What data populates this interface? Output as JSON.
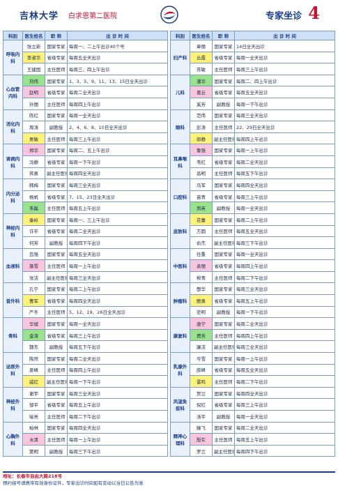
{
  "header": {
    "brand": "吉林大学",
    "hospital": "白求恩第二医院",
    "section": "专家坐诊",
    "page": "4"
  },
  "table_headers": [
    "科别",
    "医生姓名",
    "职 称",
    "出 诊 时 间"
  ],
  "left": {
    "groups": [
      {
        "dept": "呼吸内科",
        "rows": [
          [
            "张立新",
            "国家专家",
            "每周一、二上午出诊40个号"
          ],
          [
            "李淑华",
            "省级专家",
            "每周五全天出诊"
          ],
          [
            "王建国",
            "主任医师",
            "每周三、四上午出诊"
          ]
        ]
      },
      {
        "dept": "心血管内科",
        "rows": [
          [
            "刘伟",
            "国家专家",
            "1、3、5、9、11、13、15日全天出诊"
          ],
          [
            "赵明",
            "省级专家",
            "每周二全天出诊"
          ],
          [
            "孙丽",
            "主任医师",
            "每周四上午出诊"
          ]
        ]
      },
      {
        "dept": "消化内科",
        "rows": [
          [
            "陈红",
            "国家专家",
            "每周一全天出诊"
          ],
          [
            "周涛",
            "副教授",
            "2、4、6、8、10日全天出诊"
          ],
          [
            "吴敏",
            "主任医师",
            "每周三上午出诊"
          ]
        ]
      },
      {
        "dept": "肾病内科",
        "rows": [
          [
            "郑华",
            "国家专家",
            "每周二、五上午出诊"
          ],
          [
            "冯静",
            "省级专家",
            "每周一下午出诊"
          ],
          [
            "蒋勇",
            "副主任医师",
            "每周四全天出诊"
          ]
        ]
      },
      {
        "dept": "内分泌科",
        "rows": [
          [
            "韩梅",
            "国家专家",
            "每周三全天出诊"
          ],
          [
            "杨帆",
            "省级专家",
            "7、15、23日全天出诊"
          ],
          [
            "朱磊",
            "主任医师",
            "每周五上午出诊"
          ]
        ]
      },
      {
        "dept": "神经内科",
        "rows": [
          [
            "秦岭",
            "国家专家",
            "每周一、三上午出诊"
          ],
          [
            "许平",
            "省级专家",
            "每周二全天出诊"
          ],
          [
            "何芳",
            "副教授",
            "每周四下午出诊"
          ]
        ]
      },
      {
        "dept": "血液科",
        "rows": [
          [
            "吕强",
            "国家专家",
            "每周五全天出诊"
          ],
          [
            "施雪",
            "主任医师",
            "每周一上午出诊"
          ],
          [
            "张洁",
            "副主任医师",
            "每周三全天出诊"
          ]
        ]
      },
      {
        "dept": "普外科",
        "rows": [
          [
            "孔宁",
            "国家专家",
            "每周二上午出诊"
          ],
          [
            "曹军",
            "省级专家",
            "每周四全天出诊"
          ],
          [
            "严冬",
            "主任医师",
            "5、12、19、26日全天出诊"
          ]
        ]
      },
      {
        "dept": "骨科",
        "rows": [
          [
            "华斌",
            "国家专家",
            "每周一全天出诊"
          ],
          [
            "金涛",
            "省级专家",
            "每周三上午出诊"
          ],
          [
            "魏东",
            "副教授",
            "每周五下午出诊"
          ]
        ]
      },
      {
        "dept": "泌尿外科",
        "rows": [
          [
            "陶然",
            "国家专家",
            "每周二全天出诊"
          ],
          [
            "姜峰",
            "主任医师",
            "每周四上午出诊"
          ],
          [
            "戚红",
            "副主任医师",
            "每周一下午出诊"
          ]
        ]
      },
      {
        "dept": "神经外科",
        "rows": [
          [
            "谢宇",
            "国家专家",
            "每周三全天出诊"
          ],
          [
            "邹平",
            "省级专家",
            "每周五上午出诊"
          ],
          [
            "喻亮",
            "主任医师",
            "每周二下午出诊"
          ]
        ]
      },
      {
        "dept": "心胸外科",
        "rows": [
          [
            "柏林",
            "国家专家",
            "每周四全天出诊"
          ],
          [
            "水清",
            "主任医师",
            "每周一上午出诊"
          ],
          [
            "窦明",
            "副教授",
            "每周三下午出诊"
          ]
        ]
      }
    ]
  },
  "right": {
    "groups": [
      {
        "dept": "妇产科",
        "rows": [
          [
            "章丽",
            "国家专家",
            "14日全天出诊"
          ],
          [
            "云霞",
            "省级专家",
            "每周一全天出诊"
          ],
          [
            "苏敏",
            "主任医师",
            "每周三上午出诊"
          ]
        ]
      },
      {
        "dept": "儿科",
        "rows": [
          [
            "潘华",
            "国家专家",
            "每周二、四上午出诊"
          ],
          [
            "葛云",
            "省级专家",
            "每周五全天出诊"
          ],
          [
            "奚芳",
            "副教授",
            "每周一下午出诊"
          ]
        ]
      },
      {
        "dept": "眼科",
        "rows": [
          [
            "范伟",
            "国家专家",
            "每周三全天出诊"
          ],
          [
            "彭涛",
            "主任医师",
            "22、29日全天出诊"
          ],
          [
            "郎静",
            "副主任医师",
            "每周四上午出诊"
          ]
        ]
      },
      {
        "dept": "耳鼻喉科",
        "rows": [
          [
            "鲁强",
            "国家专家",
            "每周一上午出诊"
          ],
          [
            "韦红",
            "省级专家",
            "每周二全天出诊"
          ],
          [
            "昌明",
            "主任医师",
            "每周五下午出诊"
          ]
        ]
      },
      {
        "dept": "口腔科",
        "rows": [
          [
            "马军",
            "国家专家",
            "每周四全天出诊"
          ],
          [
            "苗青",
            "省级专家",
            "每周三上午出诊"
          ],
          [
            "凤英",
            "副教授",
            "每周一全天出诊"
          ]
        ]
      },
      {
        "dept": "皮肤科",
        "rows": [
          [
            "花蕾",
            "国家专家",
            "每周二上午出诊"
          ],
          [
            "方圆",
            "主任医师",
            "每周五全天出诊"
          ],
          [
            "俞杰",
            "副主任医师",
            "每周三下午出诊"
          ]
        ]
      },
      {
        "dept": "中医科",
        "rows": [
          [
            "任重",
            "国家专家",
            "每周一全天出诊"
          ],
          [
            "袁丽",
            "省级专家",
            "每周四上午出诊"
          ],
          [
            "柳青",
            "主任医师",
            "每周二下午出诊"
          ]
        ]
      },
      {
        "dept": "肿瘤科",
        "rows": [
          [
            "酆华",
            "国家专家",
            "每周三全天出诊"
          ],
          [
            "鲍勇",
            "省级专家",
            "每周五上午出诊"
          ],
          [
            "史明",
            "副教授",
            "每周一下午出诊"
          ]
        ]
      },
      {
        "dept": "康复科",
        "rows": [
          [
            "唐宁",
            "国家专家",
            "每周二全天出诊"
          ],
          [
            "费芳",
            "主任医师",
            "每周四上午出诊"
          ],
          [
            "廉洁",
            "副主任医师",
            "每周三全天出诊"
          ]
        ]
      },
      {
        "dept": "乳腺外科",
        "rows": [
          [
            "岑雪",
            "国家专家",
            "每周一上午出诊"
          ],
          [
            "薛峰",
            "省级专家",
            "每周五全天出诊"
          ],
          [
            "雷鸣",
            "主任医师",
            "每周二下午出诊"
          ]
        ]
      },
      {
        "dept": "风湿免疫科",
        "rows": [
          [
            "贺兰",
            "国家专家",
            "每周四全天出诊"
          ],
          [
            "倪红",
            "省级专家",
            "每周三上午出诊"
          ],
          [
            "汤平",
            "副教授",
            "每周一全天出诊"
          ]
        ]
      },
      {
        "dept": "精神心理科",
        "rows": [
          [
            "滕飞",
            "国家专家",
            "每周二全天出诊"
          ],
          [
            "殷实",
            "主任医师",
            "每周五上午出诊"
          ],
          [
            "罗兰",
            "副主任医师",
            "每周四下午出诊"
          ]
        ]
      }
    ]
  },
  "footer": [
    "地址：长春市自由大路218号",
    "预约挂号请携带有效身份证件，专家出诊时间如有变动以当日公告为准"
  ]
}
